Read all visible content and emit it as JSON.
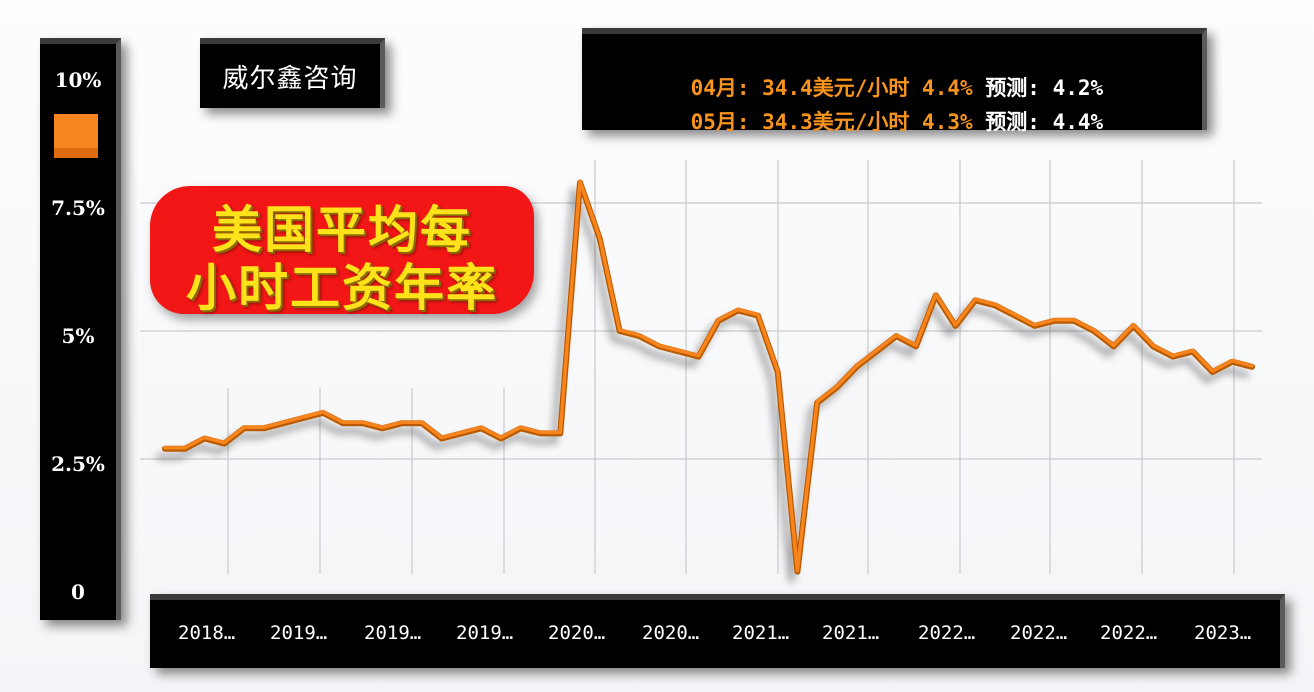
{
  "brand": {
    "label": "威尔鑫咨询"
  },
  "title": {
    "line1": "美国平均每",
    "line2": "小时工资年率"
  },
  "info": {
    "rows": [
      {
        "month": "04月",
        "value": "34.4美元/小时",
        "rate": "4.4%",
        "forecast_label": "预测",
        "forecast": "4.2%"
      },
      {
        "month": "05月",
        "value": "34.3美元/小时",
        "rate": "4.3%",
        "forecast_label": "预测",
        "forecast": "4.4%"
      }
    ]
  },
  "y_axis": {
    "labels": [
      "10%",
      "7.5%",
      "5%",
      "2.5%",
      "0"
    ]
  },
  "x_axis": {
    "labels": [
      "2018…",
      "2019…",
      "2019…",
      "2019…",
      "2020…",
      "2020…",
      "2021…",
      "2021…",
      "2022…",
      "2022…",
      "2022…",
      "2023…"
    ]
  },
  "colors": {
    "line": "#f7841f",
    "line_dark": "#b85a05",
    "panel": "#000000",
    "badge": "#f21616",
    "badge_text": "#ffe21a",
    "grid": "#c8cad0"
  },
  "chart_data": {
    "type": "line",
    "title": "美国平均每小时工资年率",
    "xlabel": "",
    "ylabel": "",
    "ylim": [
      0,
      10
    ],
    "yticks": [
      "0",
      "2.5%",
      "5%",
      "7.5%",
      "10%"
    ],
    "grid": true,
    "legend": {
      "position": "left",
      "entries": [
        ""
      ]
    },
    "categories": [
      "2018…",
      "2019…",
      "2019…",
      "2019…",
      "2020…",
      "2020…",
      "2021…",
      "2021…",
      "2022…",
      "2022…",
      "2022…",
      "2023…"
    ],
    "series": [
      {
        "name": "平均每小时工资年率",
        "values": [
          2.7,
          2.7,
          2.9,
          2.8,
          3.1,
          3.1,
          3.2,
          3.3,
          3.4,
          3.2,
          3.2,
          3.1,
          3.2,
          3.2,
          2.9,
          3.0,
          3.1,
          2.9,
          3.1,
          3.0,
          3.0,
          7.9,
          6.8,
          5.0,
          4.9,
          4.7,
          4.6,
          4.5,
          5.2,
          5.4,
          5.3,
          4.2,
          0.3,
          3.6,
          3.9,
          4.3,
          4.6,
          4.9,
          4.7,
          5.7,
          5.1,
          5.6,
          5.5,
          5.3,
          5.1,
          5.2,
          5.2,
          5.0,
          4.7,
          5.1,
          4.7,
          4.5,
          4.6,
          4.2,
          4.4,
          4.3
        ]
      }
    ],
    "annotations": [
      "04月: 34.4美元/小时 4.4% 预测: 4.2%",
      "05月: 34.3美元/小时 4.3% 预测: 4.4%",
      "威尔鑫咨询"
    ]
  }
}
